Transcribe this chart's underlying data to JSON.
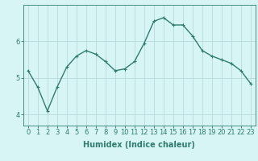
{
  "x": [
    0,
    1,
    2,
    3,
    4,
    5,
    6,
    7,
    8,
    9,
    10,
    11,
    12,
    13,
    14,
    15,
    16,
    17,
    18,
    19,
    20,
    21,
    22,
    23
  ],
  "y": [
    5.2,
    4.75,
    4.1,
    4.75,
    5.3,
    5.6,
    5.75,
    5.65,
    5.45,
    5.2,
    5.25,
    5.45,
    5.95,
    6.55,
    6.65,
    6.45,
    6.45,
    6.15,
    5.75,
    5.6,
    5.5,
    5.4,
    5.2,
    4.85
  ],
  "line_color": "#2e7d6e",
  "marker": "+",
  "marker_size": 3,
  "bg_color": "#d8f5f5",
  "grid_color": "#b8dada",
  "axis_color": "#2e7d6e",
  "xlabel": "Humidex (Indice chaleur)",
  "xlim": [
    -0.5,
    23.5
  ],
  "ylim": [
    3.7,
    7.0
  ],
  "yticks": [
    4,
    5,
    6
  ],
  "xticks": [
    0,
    1,
    2,
    3,
    4,
    5,
    6,
    7,
    8,
    9,
    10,
    11,
    12,
    13,
    14,
    15,
    16,
    17,
    18,
    19,
    20,
    21,
    22,
    23
  ],
  "xlabel_fontsize": 7,
  "tick_fontsize": 6,
  "linewidth": 1.0
}
